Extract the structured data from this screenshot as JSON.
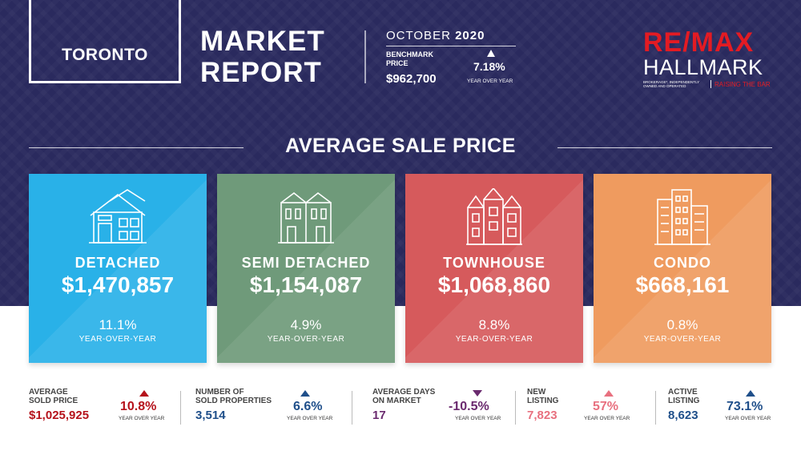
{
  "header": {
    "city": "TORONTO",
    "title_line1": "MARKET",
    "title_line2": "REPORT",
    "month": "OCTOBER",
    "year": "2020",
    "benchmark_label_line1": "BENCHMARK",
    "benchmark_label_line2": "PRICE",
    "benchmark_price": "$962,700",
    "benchmark_change": "7.18%",
    "benchmark_change_label": "YEAR OVER YEAR"
  },
  "logo": {
    "brand": "RE/MAX",
    "name": "HALLMARK",
    "small_print": "BROKERAGE*, INDEPENDENTLY OWNED AND OPERATED",
    "tagline": "RAISING THE BAR",
    "brand_color": "#e31b23"
  },
  "section_title": "AVERAGE SALE PRICE",
  "cards": [
    {
      "name": "DETACHED",
      "price": "$1,470,857",
      "change": "11.1%",
      "change_label": "YEAR-OVER-YEAR",
      "color": "#29b1e8",
      "icon": "house-icon"
    },
    {
      "name": "SEMI DETACHED",
      "price": "$1,154,087",
      "change": "4.9%",
      "change_label": "YEAR-OVER-YEAR",
      "color": "#6f9a7a",
      "icon": "semi-detached-icon"
    },
    {
      "name": "TOWNHOUSE",
      "price": "$1,068,860",
      "change": "8.8%",
      "change_label": "YEAR-OVER-YEAR",
      "color": "#d65a5c",
      "icon": "townhouse-icon"
    },
    {
      "name": "CONDO",
      "price": "$668,161",
      "change": "0.8%",
      "change_label": "YEAR-OVER-YEAR",
      "color": "#ef9b5f",
      "icon": "condo-icon"
    }
  ],
  "stats": [
    {
      "label_line1": "AVERAGE",
      "label_line2": "SOLD PRICE",
      "value": "$1,025,925",
      "change": "10.8%",
      "change_label": "YEAR OVER YEAR",
      "direction": "up",
      "color": "#b5121b"
    },
    {
      "label_line1": "NUMBER OF",
      "label_line2": "SOLD PROPERTIES",
      "value": "3,514",
      "change": "6.6%",
      "change_label": "YEAR OVER YEAR",
      "direction": "up",
      "color": "#1f4f8a"
    },
    {
      "label_line1": "AVERAGE DAYS",
      "label_line2": "ON MARKET",
      "value": "17",
      "change": "-10.5%",
      "change_label": "YEAR OVER YEAR",
      "direction": "down",
      "color": "#6a2a6e"
    },
    {
      "label_line1": "NEW",
      "label_line2": "LISTING",
      "value": "7,823",
      "change": "57%",
      "change_label": "YEAR OVER YEAR",
      "direction": "up",
      "color": "#e8707f"
    },
    {
      "label_line1": "ACTIVE",
      "label_line2": "LISTING",
      "value": "8,623",
      "change": "73.1%",
      "change_label": "YEAR OVER YEAR",
      "direction": "up",
      "color": "#1f4f8a"
    }
  ]
}
